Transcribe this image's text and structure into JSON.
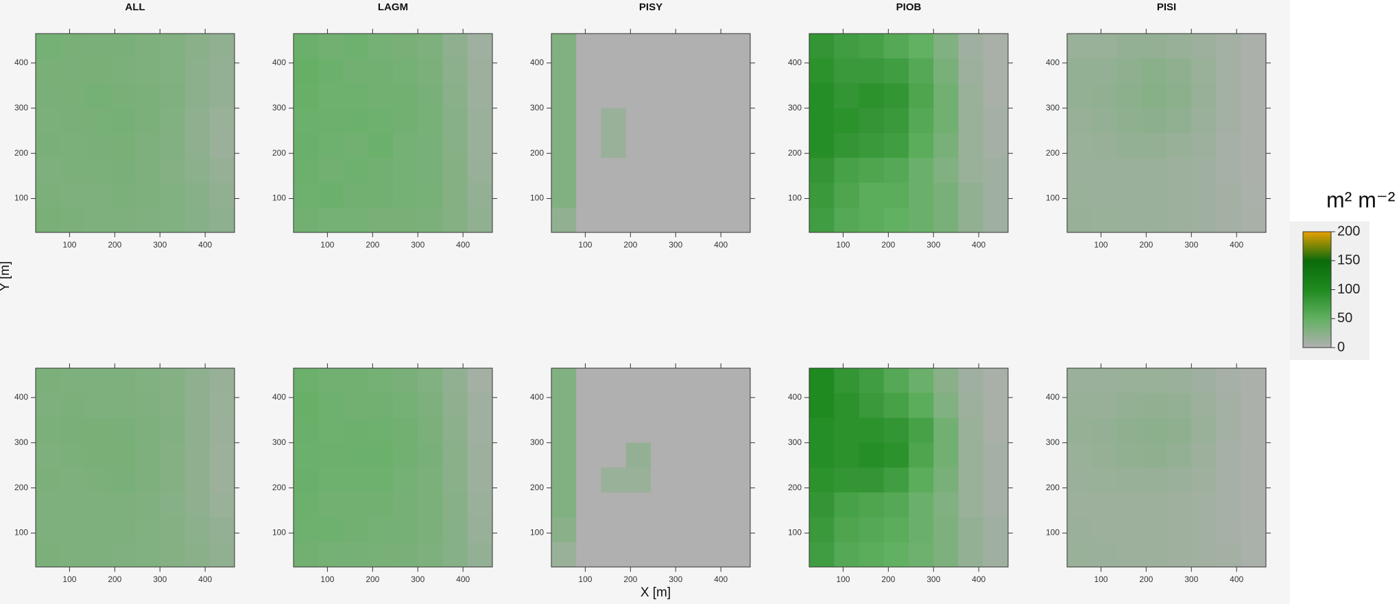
{
  "x_label": "X [m]",
  "y_label": "Y [m]",
  "colorbar": {
    "title": "m² m⁻²",
    "lim": [
      0,
      200
    ],
    "ticks": [
      0,
      50,
      100,
      150,
      200
    ],
    "colorscale": [
      [
        0,
        "#b0b0b0"
      ],
      [
        50,
        "#62b062"
      ],
      [
        100,
        "#1f8a1f"
      ],
      [
        150,
        "#0b6b0b"
      ],
      [
        200,
        "#e8a000"
      ]
    ]
  },
  "chart_data": [
    {
      "type": "heatmap",
      "title": "ALL",
      "x": [
        52.5,
        107.5,
        162.5,
        217.5,
        272.5,
        327.5,
        382.5,
        437.5
      ],
      "y": [
        437.5,
        382.5,
        327.5,
        272.5,
        217.5,
        162.5,
        107.5,
        52.5
      ],
      "xlim": [
        25,
        465
      ],
      "ylim": [
        25,
        465
      ],
      "xticks": [
        100,
        200,
        300,
        400
      ],
      "yticks": [
        100,
        200,
        300,
        400
      ],
      "values": [
        [
          38,
          36,
          35,
          35,
          33,
          30,
          25,
          20
        ],
        [
          36,
          35,
          36,
          34,
          33,
          30,
          24,
          18
        ],
        [
          35,
          36,
          38,
          36,
          34,
          31,
          24,
          18
        ],
        [
          34,
          35,
          36,
          37,
          34,
          30,
          22,
          15
        ],
        [
          35,
          34,
          35,
          36,
          33,
          29,
          22,
          14
        ],
        [
          33,
          34,
          34,
          35,
          32,
          28,
          24,
          17
        ],
        [
          34,
          33,
          33,
          34,
          32,
          30,
          26,
          20
        ],
        [
          36,
          34,
          33,
          33,
          31,
          30,
          27,
          22
        ]
      ]
    },
    {
      "type": "heatmap",
      "title": "LAGM",
      "x": [
        52.5,
        107.5,
        162.5,
        217.5,
        272.5,
        327.5,
        382.5,
        437.5
      ],
      "y": [
        437.5,
        382.5,
        327.5,
        272.5,
        217.5,
        162.5,
        107.5,
        52.5
      ],
      "xlim": [
        25,
        465
      ],
      "ylim": [
        25,
        465
      ],
      "xticks": [
        100,
        200,
        300,
        400
      ],
      "yticks": [
        100,
        200,
        300,
        400
      ],
      "values": [
        [
          45,
          40,
          42,
          38,
          36,
          32,
          22,
          10
        ],
        [
          48,
          44,
          40,
          40,
          38,
          34,
          24,
          12
        ],
        [
          46,
          42,
          42,
          40,
          40,
          35,
          25,
          12
        ],
        [
          44,
          43,
          44,
          42,
          40,
          36,
          26,
          14
        ],
        [
          45,
          42,
          40,
          44,
          38,
          35,
          26,
          14
        ],
        [
          44,
          40,
          42,
          40,
          38,
          35,
          28,
          16
        ],
        [
          42,
          44,
          40,
          40,
          38,
          36,
          28,
          18
        ],
        [
          40,
          38,
          38,
          36,
          36,
          34,
          28,
          20
        ]
      ]
    },
    {
      "type": "heatmap",
      "title": "PISY",
      "x": [
        52.5,
        107.5,
        162.5,
        217.5,
        272.5,
        327.5,
        382.5,
        437.5
      ],
      "y": [
        437.5,
        382.5,
        327.5,
        272.5,
        217.5,
        162.5,
        107.5,
        52.5
      ],
      "xlim": [
        25,
        465
      ],
      "ylim": [
        25,
        465
      ],
      "xticks": [
        100,
        200,
        300,
        400
      ],
      "yticks": [
        100,
        200,
        300,
        400
      ],
      "values": [
        [
          30,
          0,
          0,
          0,
          0,
          0,
          0,
          0
        ],
        [
          30,
          0,
          0,
          0,
          0,
          0,
          0,
          0
        ],
        [
          30,
          0,
          0,
          0,
          0,
          0,
          0,
          0
        ],
        [
          30,
          0,
          15,
          0,
          0,
          0,
          0,
          0
        ],
        [
          30,
          0,
          15,
          0,
          0,
          0,
          0,
          0
        ],
        [
          30,
          0,
          0,
          0,
          0,
          0,
          0,
          0
        ],
        [
          30,
          0,
          0,
          0,
          0,
          0,
          0,
          0
        ],
        [
          20,
          0,
          0,
          0,
          0,
          0,
          0,
          0
        ]
      ]
    },
    {
      "type": "heatmap",
      "title": "PIOB",
      "x": [
        52.5,
        107.5,
        162.5,
        217.5,
        272.5,
        327.5,
        382.5,
        437.5
      ],
      "y": [
        437.5,
        382.5,
        327.5,
        272.5,
        217.5,
        162.5,
        107.5,
        52.5
      ],
      "xlim": [
        25,
        465
      ],
      "ylim": [
        25,
        465
      ],
      "xticks": [
        100,
        200,
        300,
        400
      ],
      "yticks": [
        100,
        200,
        300,
        400
      ],
      "values": [
        [
          85,
          75,
          70,
          60,
          50,
          30,
          10,
          5
        ],
        [
          90,
          80,
          80,
          75,
          60,
          35,
          12,
          5
        ],
        [
          95,
          85,
          90,
          85,
          65,
          40,
          15,
          5
        ],
        [
          95,
          90,
          85,
          80,
          60,
          40,
          15,
          8
        ],
        [
          95,
          85,
          80,
          75,
          55,
          35,
          15,
          8
        ],
        [
          85,
          70,
          65,
          60,
          45,
          30,
          15,
          10
        ],
        [
          80,
          65,
          55,
          55,
          45,
          35,
          20,
          10
        ],
        [
          75,
          60,
          55,
          50,
          45,
          35,
          20,
          10
        ]
      ]
    },
    {
      "type": "heatmap",
      "title": "PISI",
      "x": [
        52.5,
        107.5,
        162.5,
        217.5,
        272.5,
        327.5,
        382.5,
        437.5
      ],
      "y": [
        437.5,
        382.5,
        327.5,
        272.5,
        217.5,
        162.5,
        107.5,
        52.5
      ],
      "xlim": [
        25,
        465
      ],
      "ylim": [
        25,
        465
      ],
      "xticks": [
        100,
        200,
        300,
        400
      ],
      "yticks": [
        100,
        200,
        300,
        400
      ],
      "values": [
        [
          15,
          15,
          18,
          18,
          16,
          12,
          8,
          3
        ],
        [
          18,
          18,
          22,
          25,
          22,
          15,
          8,
          3
        ],
        [
          18,
          20,
          24,
          26,
          24,
          16,
          8,
          3
        ],
        [
          16,
          18,
          22,
          24,
          20,
          14,
          7,
          3
        ],
        [
          15,
          16,
          18,
          18,
          16,
          12,
          6,
          3
        ],
        [
          14,
          14,
          14,
          14,
          12,
          10,
          6,
          3
        ],
        [
          15,
          14,
          14,
          14,
          12,
          10,
          7,
          4
        ],
        [
          16,
          15,
          14,
          14,
          12,
          10,
          8,
          5
        ]
      ]
    },
    {
      "type": "heatmap",
      "x": [
        52.5,
        107.5,
        162.5,
        217.5,
        272.5,
        327.5,
        382.5,
        437.5
      ],
      "y": [
        437.5,
        382.5,
        327.5,
        272.5,
        217.5,
        162.5,
        107.5,
        52.5
      ],
      "xlim": [
        25,
        465
      ],
      "ylim": [
        25,
        465
      ],
      "xticks": [
        100,
        200,
        300,
        400
      ],
      "yticks": [
        100,
        200,
        300,
        400
      ],
      "values": [
        [
          34,
          33,
          33,
          32,
          30,
          28,
          22,
          16
        ],
        [
          33,
          34,
          33,
          33,
          31,
          28,
          22,
          15
        ],
        [
          34,
          35,
          36,
          35,
          33,
          29,
          22,
          14
        ],
        [
          33,
          34,
          36,
          36,
          33,
          28,
          21,
          13
        ],
        [
          34,
          33,
          34,
          35,
          32,
          28,
          21,
          13
        ],
        [
          32,
          33,
          33,
          33,
          31,
          27,
          22,
          15
        ],
        [
          33,
          32,
          32,
          32,
          30,
          28,
          24,
          18
        ],
        [
          34,
          33,
          32,
          31,
          30,
          28,
          25,
          20
        ]
      ]
    },
    {
      "type": "heatmap",
      "x": [
        52.5,
        107.5,
        162.5,
        217.5,
        272.5,
        327.5,
        382.5,
        437.5
      ],
      "y": [
        437.5,
        382.5,
        327.5,
        272.5,
        217.5,
        162.5,
        107.5,
        52.5
      ],
      "xlim": [
        25,
        465
      ],
      "ylim": [
        25,
        465
      ],
      "xticks": [
        100,
        200,
        300,
        400
      ],
      "yticks": [
        100,
        200,
        300,
        400
      ],
      "values": [
        [
          44,
          40,
          40,
          38,
          35,
          30,
          20,
          8
        ],
        [
          46,
          42,
          40,
          40,
          38,
          33,
          22,
          10
        ],
        [
          45,
          42,
          43,
          42,
          40,
          34,
          24,
          10
        ],
        [
          44,
          43,
          44,
          44,
          40,
          35,
          25,
          12
        ],
        [
          45,
          42,
          42,
          42,
          38,
          34,
          25,
          12
        ],
        [
          44,
          40,
          40,
          40,
          37,
          34,
          26,
          14
        ],
        [
          42,
          42,
          40,
          38,
          37,
          34,
          27,
          16
        ],
        [
          40,
          38,
          37,
          36,
          35,
          33,
          27,
          18
        ]
      ]
    },
    {
      "type": "heatmap",
      "x": [
        52.5,
        107.5,
        162.5,
        217.5,
        272.5,
        327.5,
        382.5,
        437.5
      ],
      "y": [
        437.5,
        382.5,
        327.5,
        272.5,
        217.5,
        162.5,
        107.5,
        52.5
      ],
      "xlim": [
        25,
        465
      ],
      "ylim": [
        25,
        465
      ],
      "xticks": [
        100,
        200,
        300,
        400
      ],
      "yticks": [
        100,
        200,
        300,
        400
      ],
      "values": [
        [
          30,
          0,
          0,
          0,
          0,
          0,
          0,
          0
        ],
        [
          30,
          0,
          0,
          0,
          0,
          0,
          0,
          0
        ],
        [
          30,
          0,
          0,
          0,
          0,
          0,
          0,
          0
        ],
        [
          30,
          0,
          0,
          18,
          0,
          0,
          0,
          0
        ],
        [
          30,
          0,
          15,
          15,
          0,
          0,
          0,
          0
        ],
        [
          30,
          0,
          0,
          0,
          0,
          0,
          0,
          0
        ],
        [
          25,
          0,
          0,
          0,
          0,
          0,
          0,
          0
        ],
        [
          15,
          0,
          0,
          0,
          0,
          0,
          0,
          0
        ]
      ]
    },
    {
      "type": "heatmap",
      "x": [
        52.5,
        107.5,
        162.5,
        217.5,
        272.5,
        327.5,
        382.5,
        437.5
      ],
      "y": [
        437.5,
        382.5,
        327.5,
        272.5,
        217.5,
        162.5,
        107.5,
        52.5
      ],
      "xlim": [
        25,
        465
      ],
      "ylim": [
        25,
        465
      ],
      "xticks": [
        100,
        200,
        300,
        400
      ],
      "yticks": [
        100,
        200,
        300,
        400
      ],
      "values": [
        [
          100,
          85,
          75,
          60,
          45,
          25,
          10,
          5
        ],
        [
          100,
          90,
          80,
          70,
          55,
          30,
          12,
          5
        ],
        [
          95,
          90,
          90,
          85,
          70,
          40,
          15,
          5
        ],
        [
          95,
          90,
          95,
          90,
          65,
          40,
          15,
          8
        ],
        [
          90,
          85,
          85,
          75,
          55,
          35,
          15,
          8
        ],
        [
          85,
          70,
          65,
          60,
          45,
          30,
          15,
          8
        ],
        [
          80,
          65,
          60,
          55,
          45,
          32,
          18,
          10
        ],
        [
          75,
          60,
          55,
          50,
          42,
          32,
          18,
          10
        ]
      ]
    },
    {
      "type": "heatmap",
      "x": [
        52.5,
        107.5,
        162.5,
        217.5,
        272.5,
        327.5,
        382.5,
        437.5
      ],
      "y": [
        437.5,
        382.5,
        327.5,
        272.5,
        217.5,
        162.5,
        107.5,
        52.5
      ],
      "xlim": [
        25,
        465
      ],
      "ylim": [
        25,
        465
      ],
      "xticks": [
        100,
        200,
        300,
        400
      ],
      "yticks": [
        100,
        200,
        300,
        400
      ],
      "values": [
        [
          14,
          14,
          15,
          15,
          14,
          10,
          6,
          3
        ],
        [
          16,
          16,
          18,
          20,
          18,
          13,
          7,
          3
        ],
        [
          17,
          18,
          22,
          24,
          22,
          15,
          7,
          3
        ],
        [
          15,
          17,
          20,
          22,
          18,
          13,
          6,
          3
        ],
        [
          14,
          15,
          16,
          16,
          14,
          11,
          6,
          3
        ],
        [
          13,
          13,
          13,
          13,
          11,
          9,
          6,
          3
        ],
        [
          14,
          13,
          13,
          13,
          11,
          9,
          6,
          4
        ],
        [
          15,
          14,
          13,
          13,
          11,
          9,
          7,
          4
        ]
      ]
    }
  ]
}
